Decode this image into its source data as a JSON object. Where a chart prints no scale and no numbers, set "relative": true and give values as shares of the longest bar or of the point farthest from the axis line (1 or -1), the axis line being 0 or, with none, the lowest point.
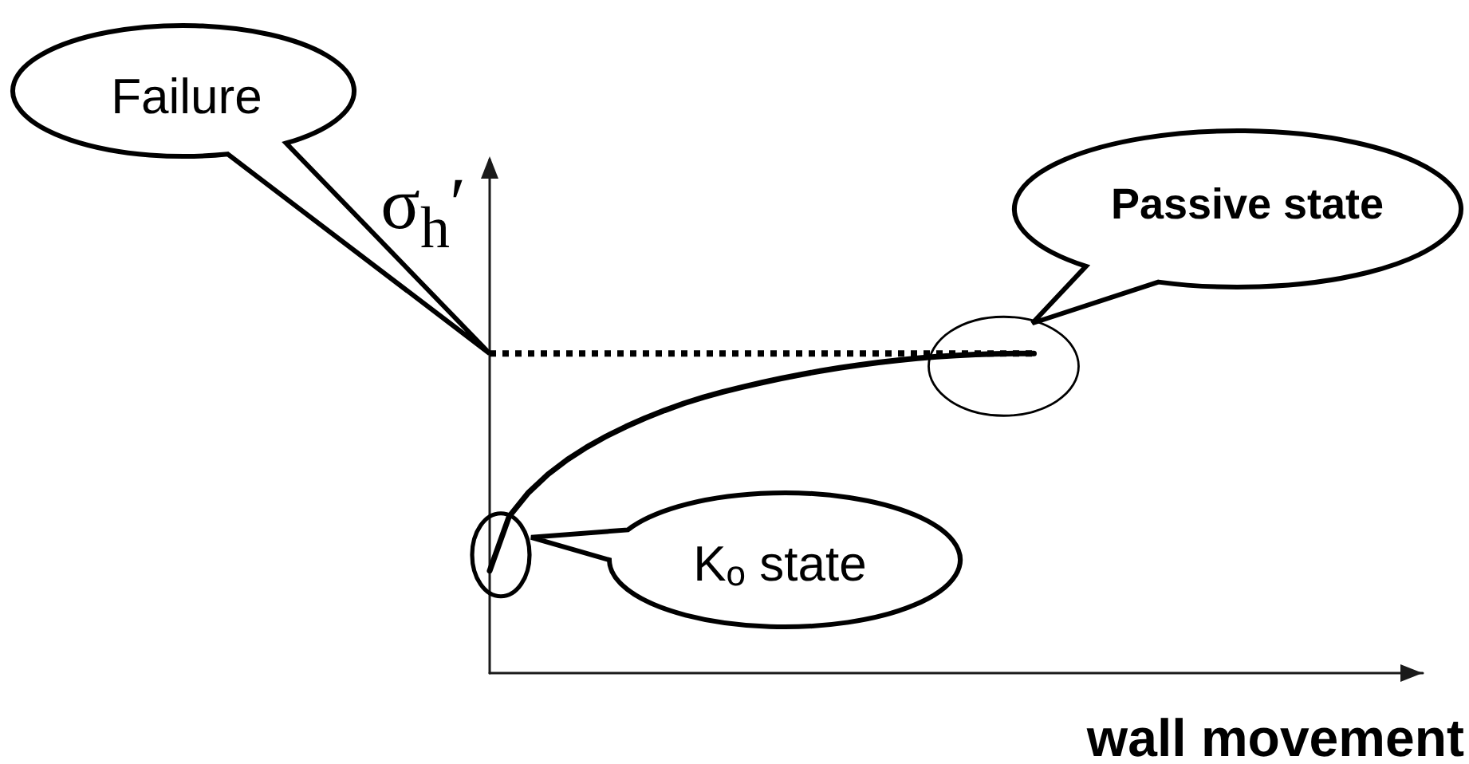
{
  "chart_data": {
    "type": "line",
    "relative": true,
    "xlabel": "wall movement",
    "ylabel": "σ$_{h}$′",
    "marker": "none",
    "line_style": "solid",
    "categories": [
      null,
      null,
      null,
      null,
      null,
      null,
      null,
      null,
      null,
      null,
      null,
      null,
      null,
      null,
      null,
      null,
      null,
      null,
      null,
      null,
      null,
      null,
      null,
      null,
      null,
      null,
      null,
      null,
      null,
      null,
      null,
      null,
      null,
      null,
      null,
      null,
      null,
      null,
      null,
      null,
      null,
      null,
      null,
      null,
      null,
      null,
      null,
      null,
      null
    ],
    "series": [
      {
        "color": "#000000",
        "values": [
          0.32,
          0.49,
          0.565,
          0.622,
          0.668,
          0.707,
          0.741,
          0.771,
          0.798,
          0.822,
          0.844,
          0.863,
          0.88,
          0.895,
          0.909,
          0.922,
          0.934,
          0.945,
          0.955,
          0.964,
          0.972,
          0.979,
          0.985,
          0.99,
          0.994,
          0.997,
          0.999,
          1,
          1,
          null,
          null,
          null,
          null,
          null,
          null,
          null,
          null,
          null,
          null,
          null,
          null,
          null,
          null,
          null,
          null,
          null,
          null,
          null,
          null
        ]
      },
      {
        "color": "#000000",
        "line_style": "dotted",
        "values": [
          1,
          1,
          1,
          1,
          1,
          1,
          1,
          1,
          1,
          1,
          1,
          1,
          1,
          1,
          1,
          1,
          1,
          1,
          1,
          1,
          1,
          1,
          1,
          1,
          1,
          1,
          1,
          1,
          1,
          null,
          null,
          null,
          null,
          null,
          null,
          null,
          null,
          null,
          null,
          null,
          null,
          null,
          null,
          null,
          null,
          null,
          null,
          null,
          null
        ]
      }
    ],
    "annotations": [
      "Failure",
      "Passive state",
      "K$_{o}$ state"
    ]
  }
}
